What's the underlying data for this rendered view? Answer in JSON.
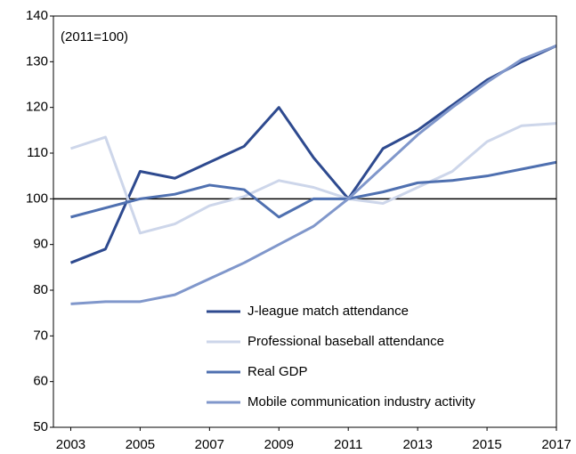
{
  "chart_data": {
    "type": "line",
    "annotation": "(2011=100)",
    "x": [
      2003,
      2004,
      2005,
      2006,
      2007,
      2008,
      2009,
      2010,
      2011,
      2012,
      2013,
      2014,
      2015,
      2016,
      2017
    ],
    "series": [
      {
        "name": "J-league match attendance",
        "color": "#2e4a8f",
        "values": [
          86,
          89,
          106,
          104.5,
          108,
          111.5,
          120,
          109,
          100,
          111,
          115,
          120.5,
          126,
          130,
          133.5
        ]
      },
      {
        "name": "Professional baseball attendance",
        "color": "#cdd6ea",
        "values": [
          111,
          113.5,
          92.5,
          94.5,
          98.5,
          100.5,
          104,
          102.5,
          100,
          99,
          102.5,
          106,
          112.5,
          116,
          116.5
        ]
      },
      {
        "name": "Real GDP",
        "color": "#4f70b0",
        "values": [
          96,
          98,
          100,
          101,
          103,
          102,
          96,
          100,
          100,
          101.5,
          103.5,
          104,
          105,
          106.5,
          108
        ]
      },
      {
        "name": "Mobile communication industry activity",
        "color": "#8097cb",
        "values": [
          77,
          77.5,
          77.5,
          79,
          82.5,
          86,
          90,
          94,
          100,
          107,
          114,
          120,
          125.5,
          130.5,
          133.5
        ]
      }
    ],
    "xlim": [
      2002.5,
      2017
    ],
    "xticks": [
      2003,
      2005,
      2007,
      2009,
      2011,
      2013,
      2015,
      2017
    ],
    "ylim": [
      50,
      140
    ],
    "yticks": [
      50,
      60,
      70,
      80,
      90,
      100,
      110,
      120,
      130,
      140
    ],
    "reference_line": 100,
    "legend": "lower right"
  }
}
